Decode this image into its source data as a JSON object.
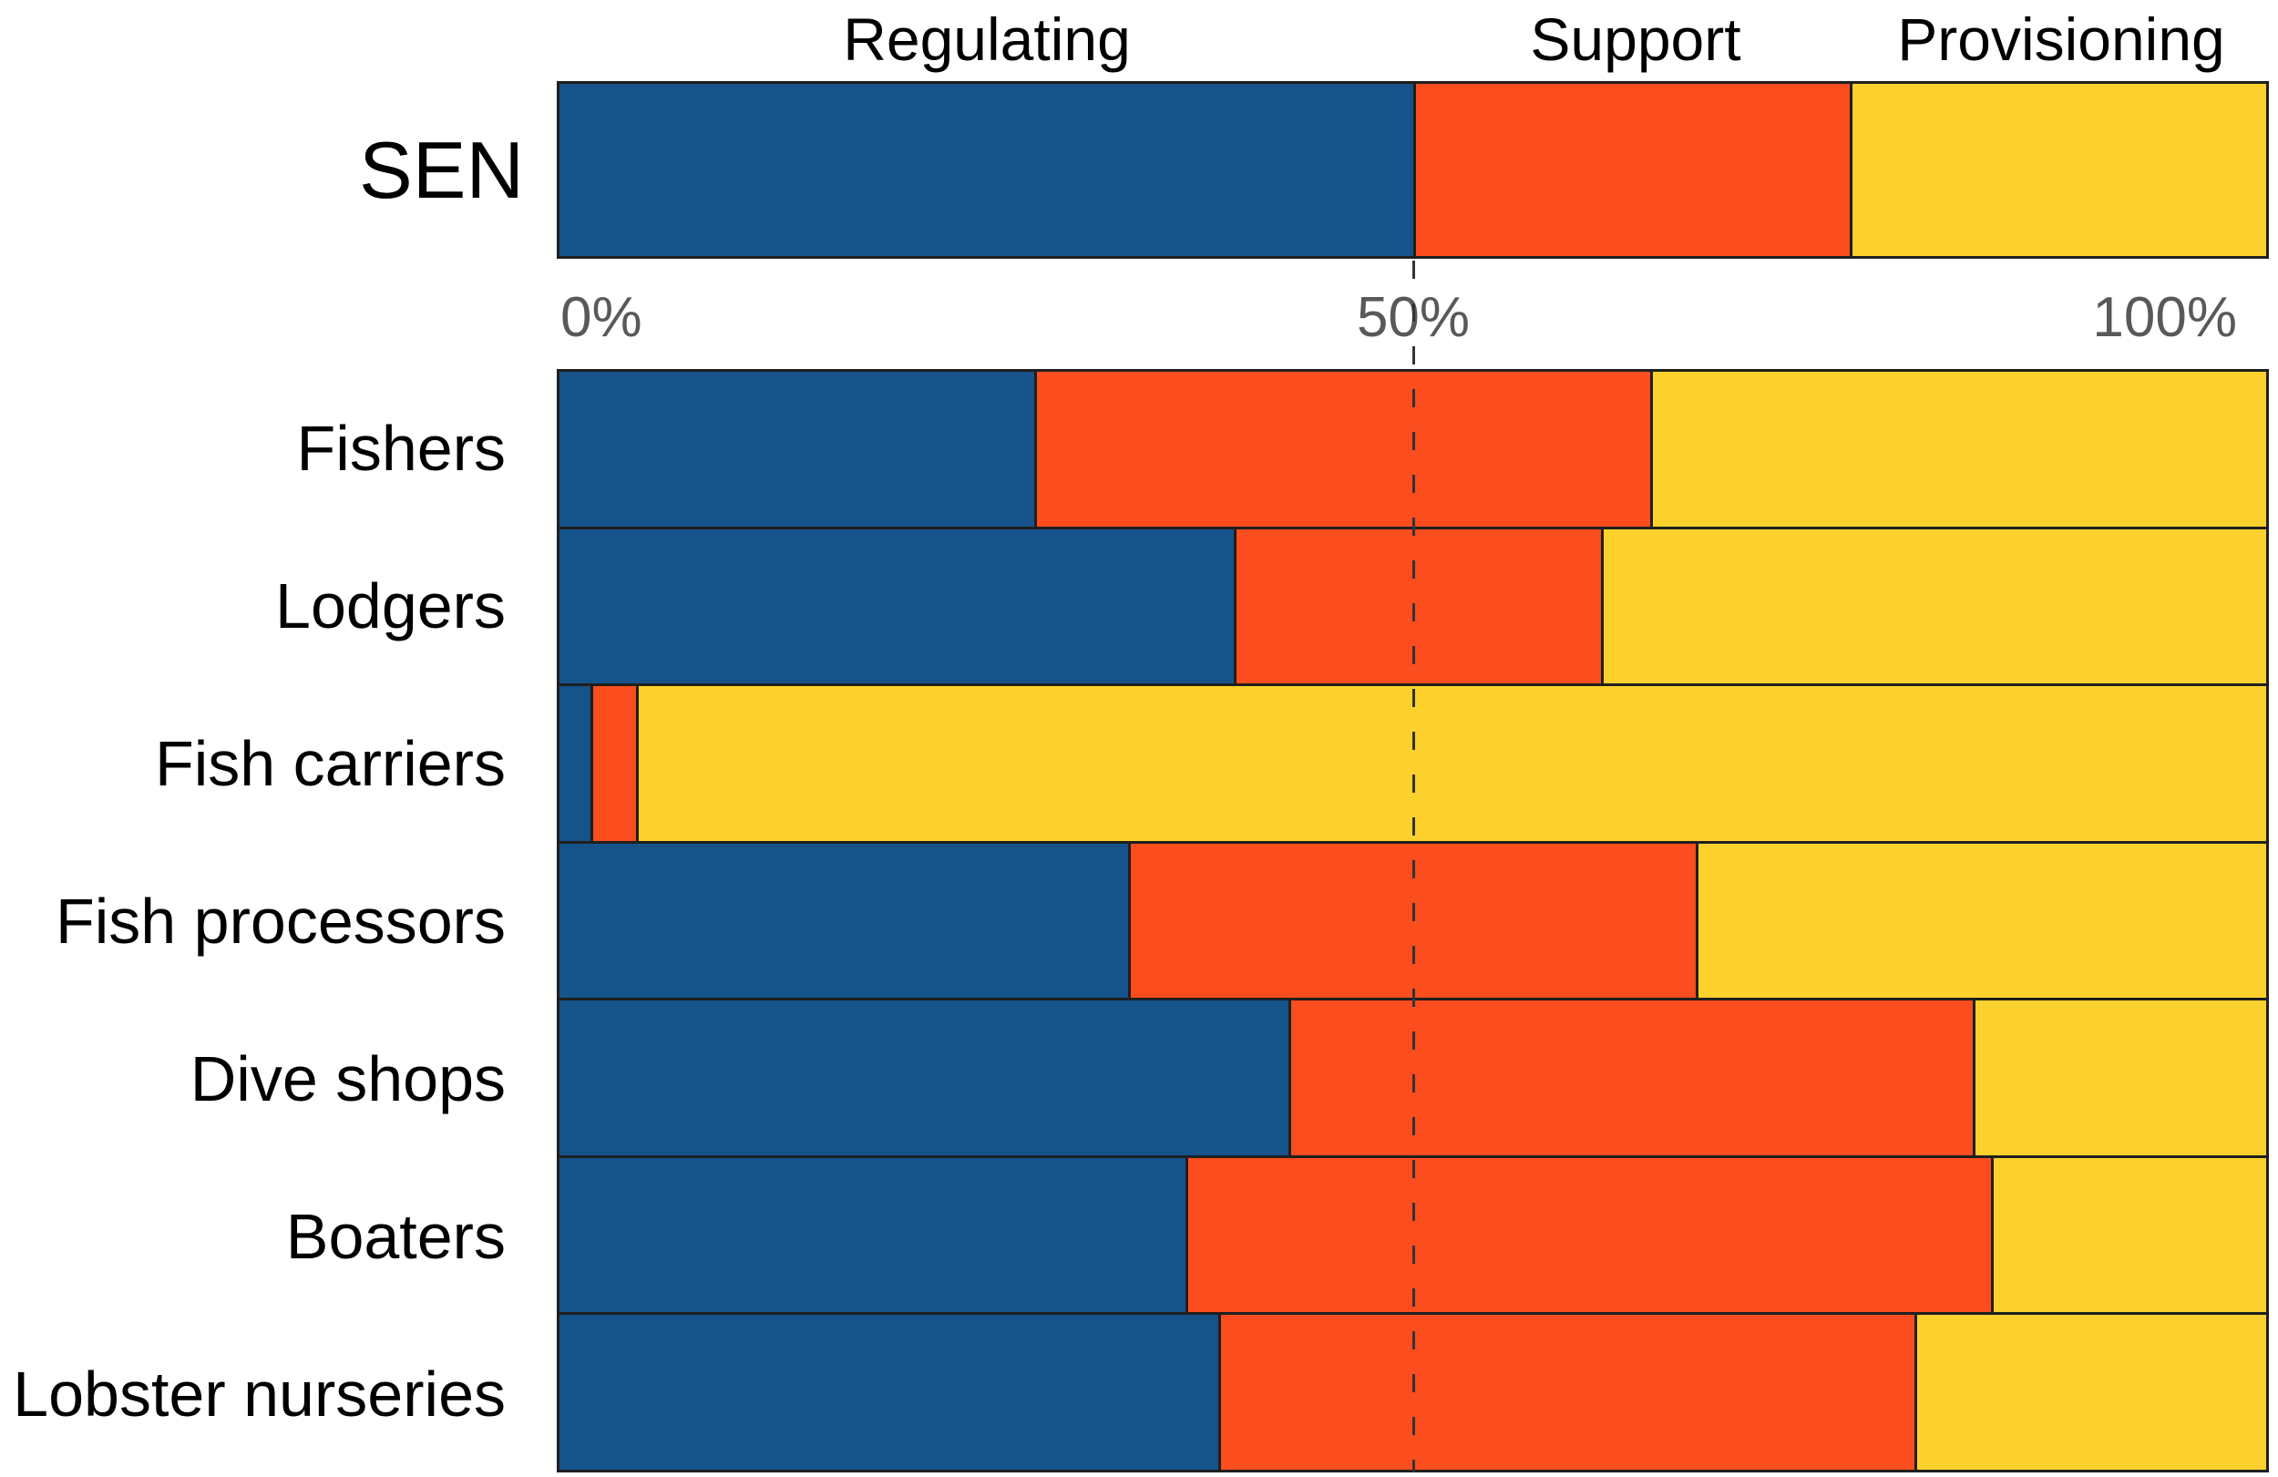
{
  "chart_data": {
    "type": "bar",
    "orientation": "horizontal",
    "stacked": true,
    "units": "percent",
    "categories": [
      "Regulating",
      "Support",
      "Provisioning"
    ],
    "palette": {
      "Regulating": "#15538A",
      "Support": "#FB4D1E",
      "Provisioning": "#FDD12D"
    },
    "x_axis": {
      "ticks": [
        "0%",
        "50%",
        "100%"
      ],
      "range": [
        0,
        100
      ],
      "dashed_gridline_at": 50
    },
    "summary_row": {
      "label": "SEN",
      "values": [
        50.0,
        25.6,
        24.4
      ]
    },
    "rows": [
      {
        "label": "Fishers",
        "values": [
          27.8,
          36.1,
          36.1
        ]
      },
      {
        "label": "Lodgers",
        "values": [
          39.5,
          21.5,
          39.0
        ]
      },
      {
        "label": "Fish carriers",
        "values": [
          1.8,
          2.7,
          95.5
        ]
      },
      {
        "label": "Fish processors",
        "values": [
          33.3,
          33.3,
          33.4
        ]
      },
      {
        "label": "Dive shops",
        "values": [
          42.7,
          40.1,
          17.2
        ]
      },
      {
        "label": "Boaters",
        "values": [
          36.7,
          47.2,
          16.1
        ]
      },
      {
        "label": "Lobster nurseries",
        "values": [
          38.6,
          40.8,
          20.6
        ]
      }
    ]
  },
  "colors": {
    "background": "#FFFFFF",
    "label_text": "#000000",
    "axis_text": "#595959",
    "bar_border": "#1F1F1F",
    "gridline": "#333333"
  }
}
